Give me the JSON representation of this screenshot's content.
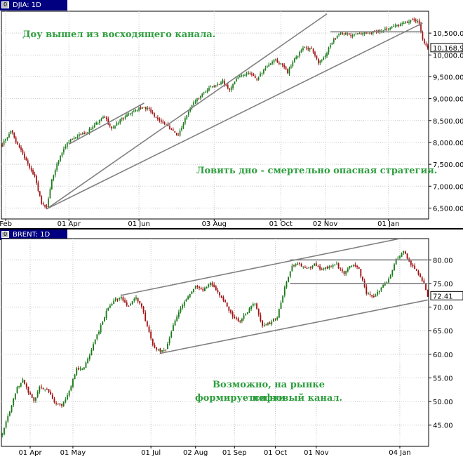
{
  "colors": {
    "up": "#1a7a1a",
    "down": "#a01010",
    "grid": "#c8c8c8",
    "axis": "#000000",
    "trend": "#808080",
    "note": "#2e9e3e",
    "title_bg": "#000080",
    "last_tag": "#ffffff"
  },
  "chart_data": [
    {
      "type": "candlestick",
      "title": "DJIA: 1D",
      "last_price": "10,168.9",
      "annotations": [
        "Доу вышел из восходящего канала.",
        "Ловить дно - смертельно опасная стратегия."
      ],
      "ylim": [
        6250,
        11000
      ],
      "y_ticks": [
        "6,500.00",
        "7,000.00",
        "7,500.00",
        "8,000.00",
        "8,500.00",
        "9,000.00",
        "9,500.00",
        "10,000.00",
        "10,500.00"
      ],
      "y_tick_values": [
        6500,
        7000,
        7500,
        8000,
        8500,
        9000,
        9500,
        10000,
        10500
      ],
      "x_ticks": [
        "Feb",
        "01 Apr",
        "01 Jun",
        "03 Aug",
        "01 Oct",
        "02 Nov",
        "01 Jan"
      ],
      "x_tick_index": [
        2,
        39,
        80,
        124,
        163,
        189,
        226
      ],
      "bar_count": 250,
      "anchors": [
        [
          0,
          7950
        ],
        [
          5,
          8280
        ],
        [
          9,
          7950
        ],
        [
          14,
          7600
        ],
        [
          19,
          7200
        ],
        [
          23,
          6600
        ],
        [
          26,
          6500
        ],
        [
          29,
          7150
        ],
        [
          33,
          7600
        ],
        [
          38,
          8000
        ],
        [
          44,
          8150
        ],
        [
          50,
          8250
        ],
        [
          55,
          8450
        ],
        [
          60,
          8580
        ],
        [
          64,
          8300
        ],
        [
          70,
          8550
        ],
        [
          76,
          8700
        ],
        [
          82,
          8820
        ],
        [
          86,
          8750
        ],
        [
          90,
          8550
        ],
        [
          95,
          8450
        ],
        [
          100,
          8250
        ],
        [
          103,
          8150
        ],
        [
          107,
          8550
        ],
        [
          112,
          8900
        ],
        [
          118,
          9150
        ],
        [
          124,
          9300
        ],
        [
          129,
          9400
        ],
        [
          133,
          9200
        ],
        [
          138,
          9500
        ],
        [
          144,
          9600
        ],
        [
          149,
          9450
        ],
        [
          154,
          9700
        ],
        [
          159,
          9900
        ],
        [
          163,
          9800
        ],
        [
          167,
          9600
        ],
        [
          171,
          9900
        ],
        [
          176,
          10150
        ],
        [
          181,
          10150
        ],
        [
          185,
          9800
        ],
        [
          189,
          10000
        ],
        [
          193,
          10300
        ],
        [
          198,
          10500
        ],
        [
          204,
          10450
        ],
        [
          210,
          10500
        ],
        [
          216,
          10520
        ],
        [
          222,
          10550
        ],
        [
          228,
          10630
        ],
        [
          234,
          10700
        ],
        [
          238,
          10780
        ],
        [
          242,
          10800
        ],
        [
          244,
          10730
        ],
        [
          246,
          10350
        ],
        [
          249,
          10168
        ]
      ],
      "trend_lines": [
        [
          [
            26,
            6480
          ],
          [
            190,
            10940
          ]
        ],
        [
          [
            26,
            6480
          ],
          [
            246,
            10730
          ]
        ],
        [
          [
            39,
            7960
          ],
          [
            83,
            8900
          ]
        ],
        [
          [
            192,
            10530
          ],
          [
            246,
            10530
          ]
        ]
      ]
    },
    {
      "type": "candlestick",
      "title": "BRENT: 1D",
      "last_price": "72.41",
      "annotations": [
        "Возможно, на рынке нефти",
        "формируется новый канал."
      ],
      "ylim": [
        40.5,
        84.5
      ],
      "y_ticks": [
        "45.00",
        "50.00",
        "55.00",
        "60.00",
        "65.00",
        "70.00",
        "75.00",
        "80.00"
      ],
      "y_tick_values": [
        45,
        50,
        55,
        60,
        65,
        70,
        75,
        80
      ],
      "x_ticks": [
        "01 Apr",
        "01 May",
        "01 Jul",
        "02 Aug",
        "01 Sep",
        "01 Oct",
        "01 Nov",
        "04 Jan"
      ],
      "x_tick_index": [
        15,
        38,
        80,
        104,
        125,
        147,
        169,
        214
      ],
      "bar_count": 230,
      "anchors": [
        [
          0,
          43
        ],
        [
          4,
          48
        ],
        [
          8,
          53
        ],
        [
          11,
          54.5
        ],
        [
          14,
          52
        ],
        [
          17,
          50
        ],
        [
          20,
          53
        ],
        [
          24,
          52.5
        ],
        [
          28,
          50
        ],
        [
          32,
          49
        ],
        [
          36,
          52
        ],
        [
          40,
          57
        ],
        [
          44,
          57
        ],
        [
          48,
          61
        ],
        [
          52,
          65
        ],
        [
          56,
          69
        ],
        [
          60,
          71.5
        ],
        [
          64,
          72
        ],
        [
          68,
          70
        ],
        [
          72,
          72
        ],
        [
          75,
          70
        ],
        [
          78,
          66
        ],
        [
          81,
          62
        ],
        [
          85,
          60.5
        ],
        [
          88,
          61
        ],
        [
          92,
          66
        ],
        [
          96,
          70
        ],
        [
          100,
          72.5
        ],
        [
          104,
          74.5
        ],
        [
          108,
          73.5
        ],
        [
          112,
          75
        ],
        [
          116,
          73
        ],
        [
          120,
          71
        ],
        [
          124,
          68
        ],
        [
          128,
          67
        ],
        [
          132,
          69
        ],
        [
          136,
          71
        ],
        [
          140,
          66
        ],
        [
          144,
          66.5
        ],
        [
          148,
          68
        ],
        [
          152,
          74
        ],
        [
          156,
          79
        ],
        [
          160,
          79
        ],
        [
          164,
          78
        ],
        [
          168,
          79
        ],
        [
          172,
          78
        ],
        [
          176,
          78.5
        ],
        [
          180,
          79
        ],
        [
          184,
          77
        ],
        [
          188,
          79
        ],
        [
          192,
          78
        ],
        [
          196,
          73
        ],
        [
          200,
          72.2
        ],
        [
          204,
          74
        ],
        [
          208,
          76
        ],
        [
          212,
          80
        ],
        [
          216,
          81.8
        ],
        [
          220,
          79
        ],
        [
          224,
          77
        ],
        [
          227,
          75
        ],
        [
          229,
          72.41
        ]
      ],
      "trend_lines": [
        [
          [
            64,
            72.5
          ],
          [
            214,
            84.5
          ]
        ],
        [
          [
            85,
            60.2
          ],
          [
            229,
            71.5
          ]
        ],
        [
          [
            155,
            80
          ],
          [
            229,
            80
          ]
        ],
        [
          [
            155,
            75
          ],
          [
            229,
            75
          ]
        ]
      ]
    }
  ]
}
